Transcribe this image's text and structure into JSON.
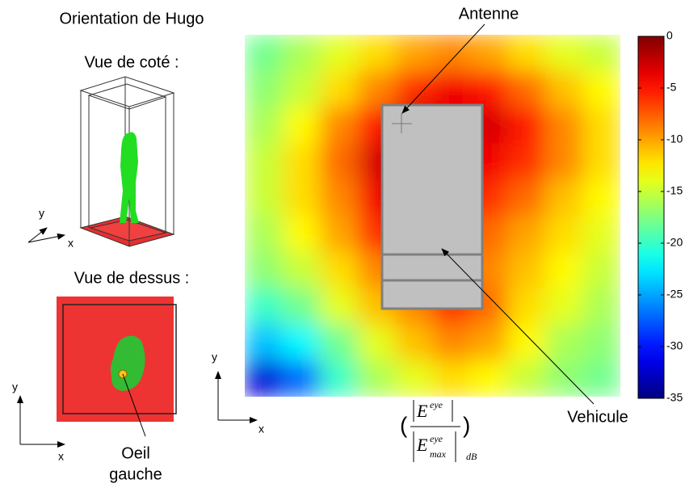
{
  "title": "Orientation de Hugo",
  "side_view": {
    "label": "Vue de coté :",
    "axes": {
      "x": "x",
      "y": "y"
    }
  },
  "top_view": {
    "label": "Vue de dessus :",
    "axes": {
      "x": "x",
      "y": "y"
    },
    "annotation": [
      "Oeil",
      "gauche"
    ]
  },
  "heatmap": {
    "axes": {
      "x": "x",
      "y": "y"
    },
    "annotations": {
      "antenna": "Antenne",
      "vehicle": "Vehicule"
    },
    "cmap": "jet",
    "zlim": [
      -35,
      0
    ],
    "zticks": [
      0,
      -5,
      -10,
      -15,
      -20,
      -25,
      -30,
      -35
    ],
    "formula": {
      "symbol": "E",
      "superscript": "eye",
      "subscript": "max",
      "unit": "dB"
    },
    "values": [
      [
        -18,
        -16,
        -14,
        -12,
        -10,
        -9,
        -10,
        -12,
        -14,
        -15
      ],
      [
        -17,
        -15,
        -12,
        -9,
        -6,
        -4,
        -5,
        -8,
        -11,
        -13
      ],
      [
        -16,
        -13,
        -9,
        -5,
        -2,
        -3,
        -3,
        -5,
        -9,
        -12
      ],
      [
        -15,
        -12,
        -8,
        -3,
        -1,
        -3,
        -4,
        -6,
        -9,
        -12
      ],
      [
        -15,
        -12,
        -9,
        -4,
        -2,
        -5,
        -6,
        -8,
        -11,
        -13
      ],
      [
        -16,
        -13,
        -10,
        -6,
        -4,
        -6,
        -8,
        -10,
        -12,
        -14
      ],
      [
        -17,
        -15,
        -12,
        -9,
        -7,
        -7,
        -9,
        -11,
        -13,
        -15
      ],
      [
        -20,
        -18,
        -14,
        -11,
        -9,
        -6,
        -8,
        -12,
        -14,
        -16
      ],
      [
        -24,
        -22,
        -18,
        -14,
        -11,
        -9,
        -10,
        -13,
        -16,
        -17
      ],
      [
        -32,
        -27,
        -20,
        -16,
        -14,
        -12,
        -13,
        -15,
        -17,
        -18
      ]
    ]
  }
}
